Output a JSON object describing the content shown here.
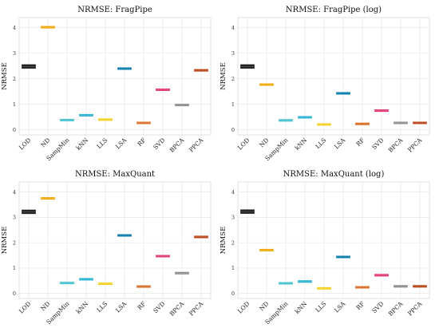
{
  "chart_data": [
    {
      "type": "box",
      "title": "NRMSE: FragPipe",
      "ylabel": "NRMSE",
      "ylim": [
        -0.2,
        4.4
      ],
      "yticks": [
        0,
        1,
        2,
        3,
        4
      ],
      "categories": [
        "LOD",
        "ND",
        "SampMin",
        "kNN",
        "LLS",
        "LSA",
        "RF",
        "SVD",
        "BPCA",
        "PPCA"
      ],
      "colors": [
        "#222222",
        "#f0a500",
        "#41c0ce",
        "#24b0d0",
        "#f5d020",
        "#0077a8",
        "#d86a20",
        "#e0306e",
        "#8a8a8a",
        "#b74010"
      ],
      "values": [
        2.48,
        4.02,
        0.38,
        0.57,
        0.4,
        2.4,
        0.27,
        1.57,
        0.97,
        2.33
      ]
    },
    {
      "type": "box",
      "title": "NRMSE: FragPipe (log)",
      "ylabel": "NRMSE",
      "ylim": [
        -0.2,
        4.4
      ],
      "yticks": [
        0,
        1,
        2,
        3,
        4
      ],
      "categories": [
        "LOD",
        "ND",
        "SampMin",
        "kNN",
        "LLS",
        "LSA",
        "RF",
        "SVD",
        "BPCA",
        "PPCA"
      ],
      "colors": [
        "#222222",
        "#f0a500",
        "#41c0ce",
        "#24b0d0",
        "#f5d020",
        "#0077a8",
        "#d86a20",
        "#e0306e",
        "#8a8a8a",
        "#b74010"
      ],
      "values": [
        2.48,
        1.77,
        0.37,
        0.49,
        0.21,
        1.43,
        0.23,
        0.75,
        0.27,
        0.27
      ]
    },
    {
      "type": "box",
      "title": "NRMSE: MaxQuant",
      "ylabel": "NRMSE",
      "ylim": [
        -0.2,
        4.4
      ],
      "yticks": [
        0,
        1,
        2,
        3,
        4
      ],
      "categories": [
        "LOD",
        "ND",
        "SampMin",
        "kNN",
        "LLS",
        "LSA",
        "RF",
        "SVD",
        "BPCA",
        "PPCA"
      ],
      "colors": [
        "#222222",
        "#f0a500",
        "#41c0ce",
        "#24b0d0",
        "#f5d020",
        "#0077a8",
        "#d86a20",
        "#e0306e",
        "#8a8a8a",
        "#b74010"
      ],
      "values": [
        3.22,
        3.75,
        0.41,
        0.56,
        0.38,
        2.29,
        0.27,
        1.47,
        0.8,
        2.23
      ]
    },
    {
      "type": "box",
      "title": "NRMSE: MaxQuant (log)",
      "ylabel": "NRMSE",
      "ylim": [
        -0.2,
        4.4
      ],
      "yticks": [
        0,
        1,
        2,
        3,
        4
      ],
      "categories": [
        "LOD",
        "ND",
        "SampMin",
        "kNN",
        "LLS",
        "LSA",
        "RF",
        "SVD",
        "BPCA",
        "PPCA"
      ],
      "colors": [
        "#222222",
        "#f0a500",
        "#41c0ce",
        "#24b0d0",
        "#f5d020",
        "#0077a8",
        "#d86a20",
        "#e0306e",
        "#8a8a8a",
        "#b74010"
      ],
      "values": [
        3.23,
        1.71,
        0.4,
        0.47,
        0.2,
        1.44,
        0.24,
        0.72,
        0.28,
        0.28
      ]
    }
  ]
}
